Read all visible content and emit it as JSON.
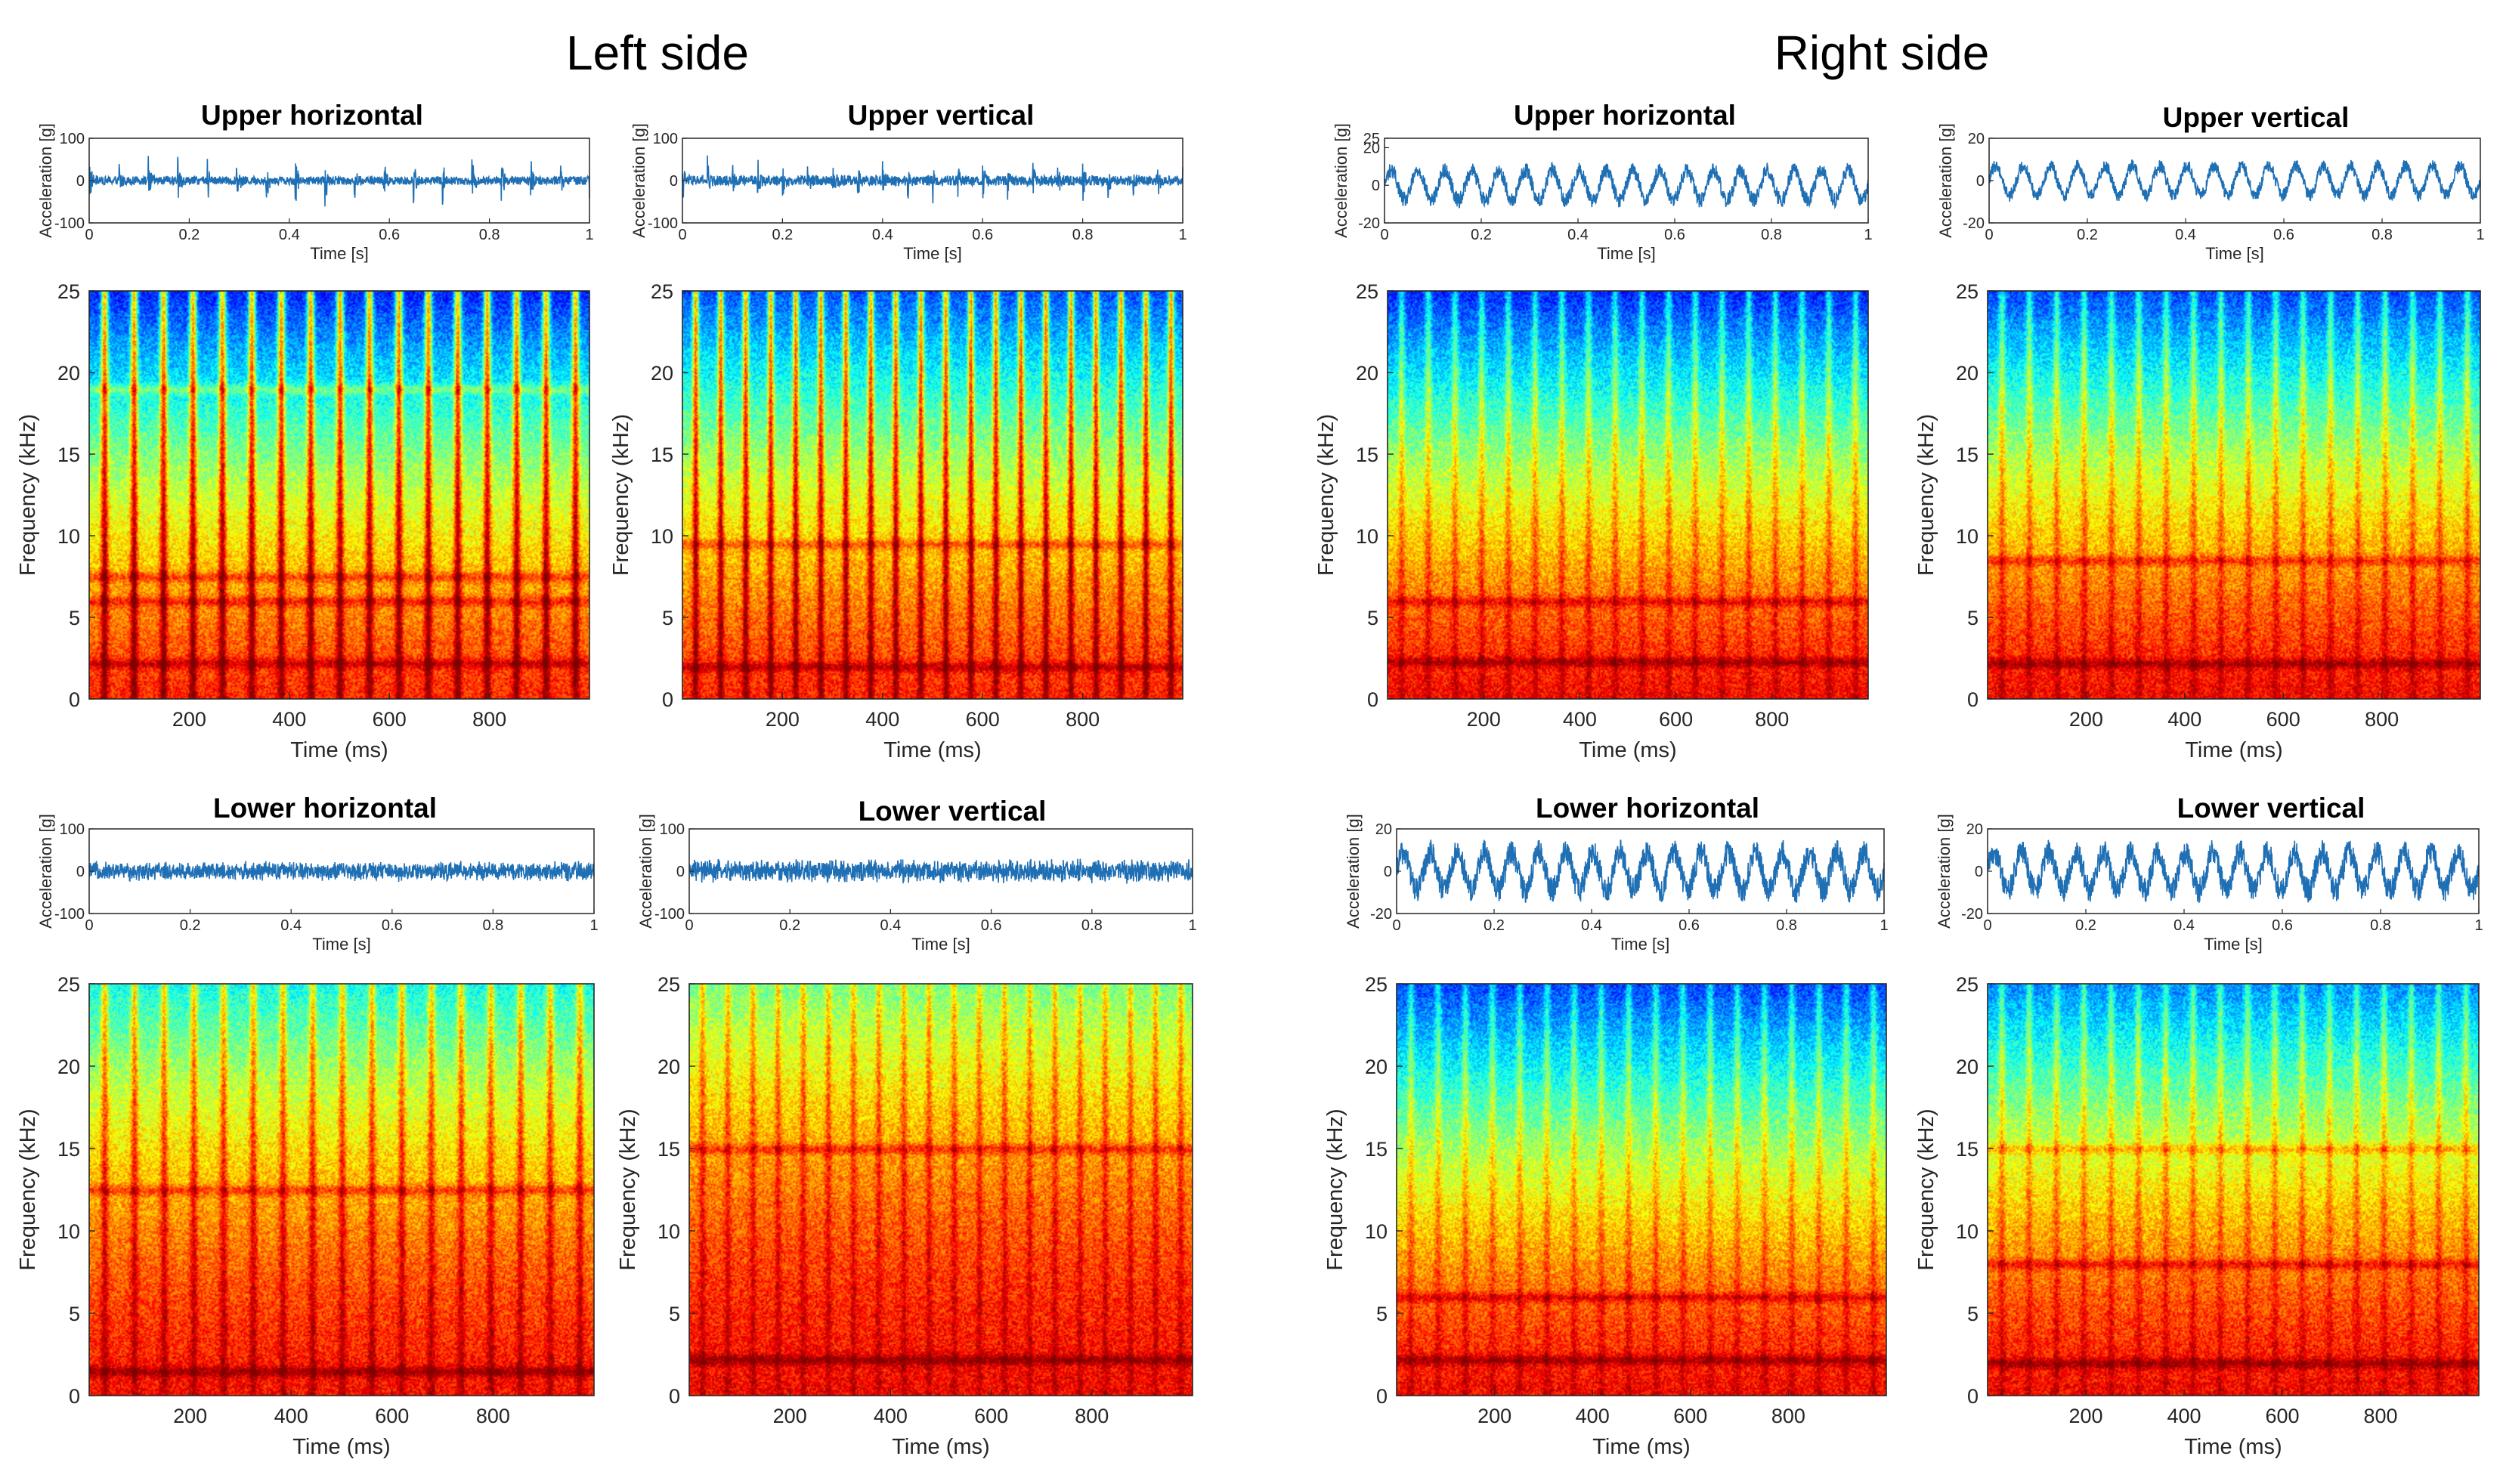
{
  "page": {
    "left_title": "Left side",
    "right_title": "Right side"
  },
  "colors": {
    "signal": "#1f6fb4",
    "axis": "#262626"
  },
  "chart_data": [
    {
      "id": "lu-h",
      "type": "line",
      "side": "Left side",
      "title": "Upper horizontal",
      "xlabel": "Time [s]",
      "ylabel": "Acceleration [g]",
      "xlim": [
        0,
        1
      ],
      "ylim": [
        -100,
        100
      ],
      "xticks": [
        "0",
        "0.2",
        "0.4",
        "0.6",
        "0.8",
        "1"
      ],
      "yticks": [
        "100",
        "0",
        "-100"
      ],
      "signal": {
        "pattern": "impulses",
        "impulse_count": 17,
        "amplitude": 75,
        "noise": 10
      },
      "spectrogram": {
        "type": "heatmap",
        "xlabel": "Time (ms)",
        "ylabel": "Frequency (kHz)",
        "xlim": [
          0,
          1000
        ],
        "ylim": [
          0,
          25
        ],
        "xticks": [
          "200",
          "400",
          "600",
          "800"
        ],
        "yticks": [
          "0",
          "5",
          "10",
          "15",
          "20",
          "25"
        ],
        "colormap": "jet",
        "band_level": 0.62,
        "stripe_count": 17,
        "stripe_strength": 0.35,
        "lines_khz": [
          19,
          7.5,
          6,
          2.2
        ]
      }
    },
    {
      "id": "lu-v",
      "type": "line",
      "side": "Left side",
      "title": "Upper vertical",
      "xlabel": "Time [s]",
      "ylabel": "Acceleration [g]",
      "xlim": [
        0,
        1
      ],
      "ylim": [
        -100,
        100
      ],
      "xticks": [
        "0",
        "0.2",
        "0.4",
        "0.6",
        "0.8",
        "1"
      ],
      "yticks": [
        "100",
        "0",
        "-100"
      ],
      "signal": {
        "pattern": "impulses",
        "impulse_count": 20,
        "amplitude": 55,
        "noise": 12
      },
      "spectrogram": {
        "type": "heatmap",
        "xlabel": "Time (ms)",
        "ylabel": "Frequency (kHz)",
        "xlim": [
          0,
          1000
        ],
        "ylim": [
          0,
          25
        ],
        "xticks": [
          "200",
          "400",
          "600",
          "800"
        ],
        "yticks": [
          "0",
          "5",
          "10",
          "15",
          "20",
          "25"
        ],
        "colormap": "jet",
        "band_level": 0.66,
        "stripe_count": 20,
        "stripe_strength": 0.33,
        "lines_khz": [
          9.5,
          2
        ]
      }
    },
    {
      "id": "ll-h",
      "type": "line",
      "side": "Left side",
      "title": "Lower horizontal",
      "xlabel": "Time [s]",
      "ylabel": "Acceleration [g]",
      "xlim": [
        0,
        1
      ],
      "ylim": [
        -100,
        100
      ],
      "xticks": [
        "0",
        "0.2",
        "0.4",
        "0.6",
        "0.8",
        "1"
      ],
      "yticks": [
        "100",
        "0",
        "-100"
      ],
      "signal": {
        "pattern": "noise",
        "amplitude": 18,
        "noise": 18
      },
      "spectrogram": {
        "type": "heatmap",
        "xlabel": "Time (ms)",
        "ylabel": "Frequency (kHz)",
        "xlim": [
          0,
          1000
        ],
        "ylim": [
          0,
          25
        ],
        "xticks": [
          "200",
          "400",
          "600",
          "800"
        ],
        "yticks": [
          "0",
          "5",
          "10",
          "15",
          "20",
          "25"
        ],
        "colormap": "jet",
        "band_level": 0.78,
        "stripe_count": 17,
        "stripe_strength": 0.18,
        "lines_khz": [
          1.5,
          12.5
        ]
      }
    },
    {
      "id": "ll-v",
      "type": "line",
      "side": "Left side",
      "title": "Lower vertical",
      "xlabel": "Time [s]",
      "ylabel": "Acceleration [g]",
      "xlim": [
        0,
        1
      ],
      "ylim": [
        -100,
        100
      ],
      "xticks": [
        "0",
        "0.2",
        "0.4",
        "0.6",
        "0.8",
        "1"
      ],
      "yticks": [
        "100",
        "0",
        "-100"
      ],
      "signal": {
        "pattern": "noise",
        "amplitude": 22,
        "noise": 22
      },
      "spectrogram": {
        "type": "heatmap",
        "xlabel": "Time (ms)",
        "ylabel": "Frequency (kHz)",
        "xlim": [
          0,
          1000
        ],
        "ylim": [
          0,
          25
        ],
        "xticks": [
          "200",
          "400",
          "600",
          "800"
        ],
        "yticks": [
          "0",
          "5",
          "10",
          "15",
          "20",
          "25"
        ],
        "colormap": "jet",
        "band_level": 0.86,
        "stripe_count": 20,
        "stripe_strength": 0.12,
        "lines_khz": [
          15,
          2.2
        ]
      }
    },
    {
      "id": "ru-h",
      "type": "line",
      "side": "Right side",
      "title": "Upper horizontal",
      "xlabel": "Time [s]",
      "ylabel": "Acceleration [g]",
      "xlim": [
        0,
        1
      ],
      "ylim": [
        -20,
        25
      ],
      "xticks": [
        "0",
        "0.2",
        "0.4",
        "0.6",
        "0.8",
        "1"
      ],
      "yticks": [
        "25",
        "20",
        "0",
        "-20"
      ],
      "signal": {
        "pattern": "sine",
        "cycles": 18,
        "amplitude": 8,
        "noise": 4
      },
      "spectrogram": {
        "type": "heatmap",
        "xlabel": "Time (ms)",
        "ylabel": "Frequency (kHz)",
        "xlim": [
          0,
          1000
        ],
        "ylim": [
          0,
          25
        ],
        "xticks": [
          "200",
          "400",
          "600",
          "800"
        ],
        "yticks": [
          "0",
          "5",
          "10",
          "15",
          "20",
          "25"
        ],
        "colormap": "jet",
        "band_level": 0.5,
        "stripe_count": 18,
        "stripe_strength": 0.14,
        "lines_khz": [
          6,
          2.3
        ]
      }
    },
    {
      "id": "ru-v",
      "type": "line",
      "side": "Right side",
      "title": "Upper vertical",
      "xlabel": "Time [s]",
      "ylabel": "Acceleration [g]",
      "xlim": [
        0,
        1
      ],
      "ylim": [
        -20,
        20
      ],
      "xticks": [
        "0",
        "0.2",
        "0.4",
        "0.6",
        "0.8",
        "1"
      ],
      "yticks": [
        "20",
        "0",
        "-20"
      ],
      "signal": {
        "pattern": "sine",
        "cycles": 18,
        "amplitude": 7,
        "noise": 3
      },
      "spectrogram": {
        "type": "heatmap",
        "xlabel": "Time (ms)",
        "ylabel": "Frequency (kHz)",
        "xlim": [
          0,
          1000
        ],
        "ylim": [
          0,
          25
        ],
        "xticks": [
          "200",
          "400",
          "600",
          "800"
        ],
        "yticks": [
          "0",
          "5",
          "10",
          "15",
          "20",
          "25"
        ],
        "colormap": "jet",
        "band_level": 0.54,
        "stripe_count": 18,
        "stripe_strength": 0.14,
        "lines_khz": [
          8.5,
          2.2
        ]
      }
    },
    {
      "id": "rl-h",
      "type": "line",
      "side": "Right side",
      "title": "Lower horizontal",
      "xlabel": "Time [s]",
      "ylabel": "Acceleration [g]",
      "xlim": [
        0,
        1
      ],
      "ylim": [
        -20,
        20
      ],
      "xticks": [
        "0",
        "0.2",
        "0.4",
        "0.6",
        "0.8",
        "1"
      ],
      "yticks": [
        "20",
        "0",
        "-20"
      ],
      "signal": {
        "pattern": "sine",
        "cycles": 18,
        "amplitude": 9,
        "noise": 6
      },
      "spectrogram": {
        "type": "heatmap",
        "xlabel": "Time (ms)",
        "ylabel": "Frequency (kHz)",
        "xlim": [
          0,
          1000
        ],
        "ylim": [
          0,
          25
        ],
        "xticks": [
          "200",
          "400",
          "600",
          "800"
        ],
        "yticks": [
          "0",
          "5",
          "10",
          "15",
          "20",
          "25"
        ],
        "colormap": "jet",
        "band_level": 0.52,
        "stripe_count": 18,
        "stripe_strength": 0.12,
        "lines_khz": [
          6,
          2.2
        ]
      }
    },
    {
      "id": "rl-v",
      "type": "line",
      "side": "Right side",
      "title": "Lower vertical",
      "xlabel": "Time [s]",
      "ylabel": "Acceleration [g]",
      "xlim": [
        0,
        1
      ],
      "ylim": [
        -20,
        20
      ],
      "xticks": [
        "0",
        "0.2",
        "0.4",
        "0.6",
        "0.8",
        "1"
      ],
      "yticks": [
        "20",
        "0",
        "-20"
      ],
      "signal": {
        "pattern": "sine",
        "cycles": 18,
        "amplitude": 9,
        "noise": 6
      },
      "spectrogram": {
        "type": "heatmap",
        "xlabel": "Time (ms)",
        "ylabel": "Frequency (kHz)",
        "xlim": [
          0,
          1000
        ],
        "ylim": [
          0,
          25
        ],
        "xticks": [
          "200",
          "400",
          "600",
          "800"
        ],
        "yticks": [
          "0",
          "5",
          "10",
          "15",
          "20",
          "25"
        ],
        "colormap": "jet",
        "band_level": 0.6,
        "stripe_count": 18,
        "stripe_strength": 0.12,
        "lines_khz": [
          15,
          8,
          2
        ]
      }
    }
  ]
}
